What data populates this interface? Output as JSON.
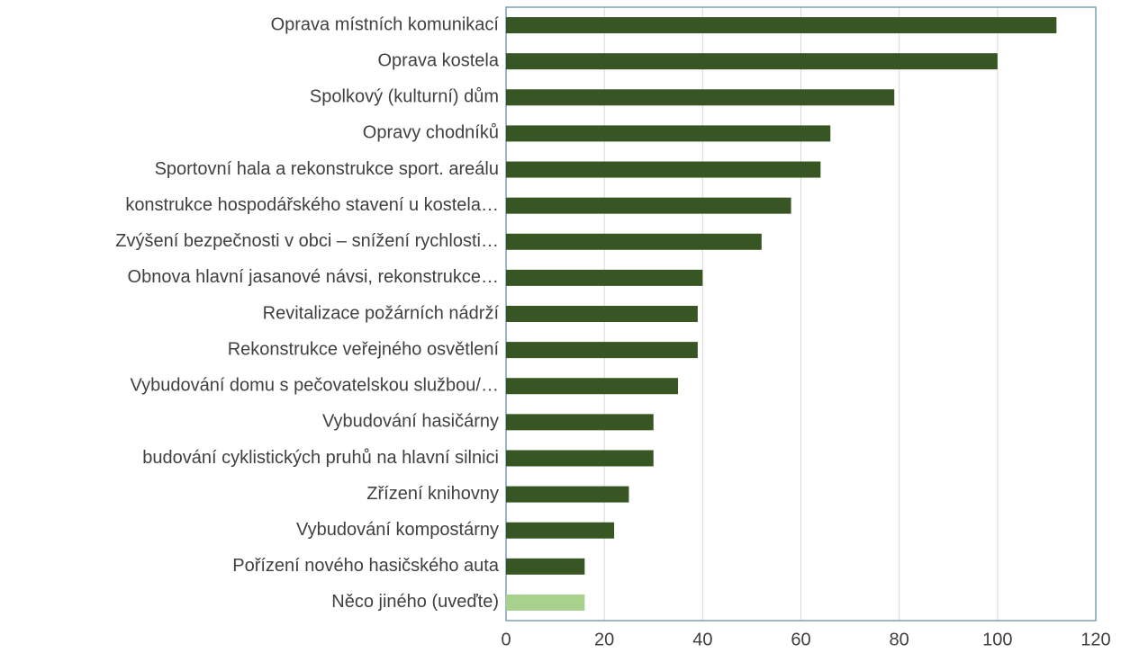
{
  "chart_data": {
    "type": "barh",
    "categories": [
      "Oprava místních komunikací",
      "Oprava kostela",
      "Spolkový (kulturní) dům",
      "Opravy chodníků",
      "Sportovní hala a rekonstrukce sport. areálu",
      "konstrukce hospodářského stavení u kostela…",
      "Zvýšení bezpečnosti v obci – snížení rychlosti…",
      "Obnova hlavní jasanové návsi, rekonstrukce…",
      "Revitalizace požárních nádrží",
      "Rekonstrukce veřejného osvětlení",
      "Vybudování domu s pečovatelskou službou/…",
      "Vybudování hasičárny",
      "budování cyklistických pruhů na hlavní silnici",
      "Zřízení knihovny",
      "Vybudování kompostárny",
      "Pořízení nového hasičského auta",
      "Něco jiného (uveďte)"
    ],
    "values": [
      112,
      100,
      79,
      66,
      64,
      58,
      52,
      40,
      39,
      39,
      35,
      30,
      30,
      25,
      22,
      16,
      16
    ],
    "colors": [
      "#375623",
      "#375623",
      "#375623",
      "#375623",
      "#375623",
      "#375623",
      "#375623",
      "#375623",
      "#375623",
      "#375623",
      "#375623",
      "#375623",
      "#375623",
      "#375623",
      "#375623",
      "#375623",
      "#a9d18e"
    ],
    "xlim": [
      0,
      120
    ],
    "xticks": [
      0,
      20,
      40,
      60,
      80,
      100,
      120
    ],
    "grid": true
  }
}
